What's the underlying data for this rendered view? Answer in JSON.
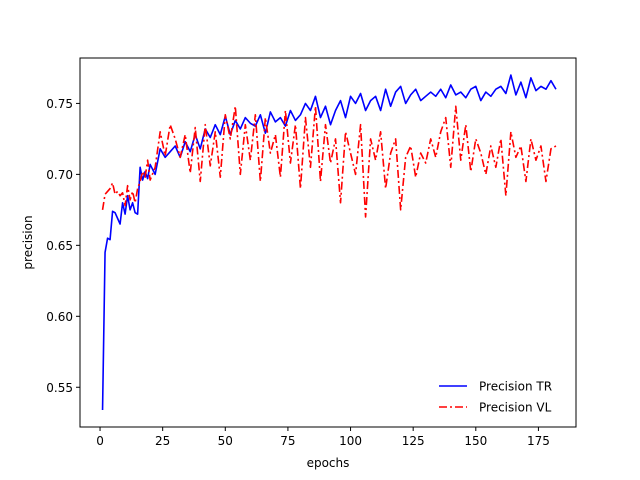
{
  "chart_data": {
    "type": "line",
    "title": "",
    "xlabel": "epochs",
    "ylabel": "precision",
    "xlim": [
      -8,
      190
    ],
    "ylim": [
      0.522,
      0.782
    ],
    "xticks": [
      0,
      25,
      50,
      75,
      100,
      125,
      150,
      175
    ],
    "yticks": [
      0.55,
      0.6,
      0.65,
      0.7,
      0.75
    ],
    "ytick_labels": [
      "0.55",
      "0.60",
      "0.65",
      "0.70",
      "0.75"
    ],
    "grid": false,
    "legend_position": "lower-right",
    "series": [
      {
        "name": "Precision TR",
        "color": "#0000ff",
        "linestyle": "solid",
        "x": [
          1,
          2,
          3,
          4,
          5,
          6,
          7,
          8,
          9,
          10,
          11,
          12,
          13,
          14,
          15,
          16,
          17,
          18,
          19,
          20,
          22,
          24,
          26,
          28,
          30,
          32,
          34,
          36,
          38,
          40,
          42,
          44,
          46,
          48,
          50,
          52,
          54,
          56,
          58,
          60,
          62,
          64,
          66,
          68,
          70,
          72,
          74,
          76,
          78,
          80,
          82,
          84,
          86,
          88,
          90,
          92,
          94,
          96,
          98,
          100,
          102,
          104,
          106,
          108,
          110,
          112,
          114,
          116,
          118,
          120,
          122,
          124,
          126,
          128,
          130,
          132,
          134,
          136,
          138,
          140,
          142,
          144,
          146,
          148,
          150,
          152,
          154,
          156,
          158,
          160,
          162,
          164,
          166,
          168,
          170,
          172,
          174,
          176,
          178,
          180,
          182
        ],
        "y": [
          0.534,
          0.645,
          0.655,
          0.654,
          0.674,
          0.673,
          0.669,
          0.665,
          0.68,
          0.672,
          0.685,
          0.675,
          0.68,
          0.673,
          0.672,
          0.705,
          0.696,
          0.702,
          0.697,
          0.707,
          0.7,
          0.718,
          0.712,
          0.716,
          0.72,
          0.712,
          0.723,
          0.716,
          0.728,
          0.718,
          0.732,
          0.726,
          0.735,
          0.728,
          0.741,
          0.728,
          0.738,
          0.732,
          0.74,
          0.736,
          0.734,
          0.742,
          0.729,
          0.744,
          0.737,
          0.74,
          0.734,
          0.745,
          0.738,
          0.742,
          0.75,
          0.745,
          0.755,
          0.74,
          0.748,
          0.735,
          0.745,
          0.752,
          0.74,
          0.755,
          0.75,
          0.757,
          0.745,
          0.752,
          0.755,
          0.745,
          0.76,
          0.748,
          0.758,
          0.762,
          0.75,
          0.756,
          0.76,
          0.752,
          0.755,
          0.758,
          0.755,
          0.76,
          0.754,
          0.763,
          0.756,
          0.758,
          0.754,
          0.76,
          0.762,
          0.752,
          0.758,
          0.755,
          0.76,
          0.762,
          0.757,
          0.77,
          0.756,
          0.765,
          0.754,
          0.768,
          0.759,
          0.762,
          0.76,
          0.766,
          0.76
        ]
      },
      {
        "name": "Precision VL",
        "color": "#ff0000",
        "linestyle": "dashdot",
        "x": [
          1,
          2,
          3,
          4,
          5,
          6,
          7,
          8,
          9,
          10,
          11,
          12,
          13,
          14,
          15,
          16,
          17,
          18,
          19,
          20,
          22,
          24,
          26,
          28,
          30,
          32,
          34,
          36,
          38,
          40,
          42,
          44,
          46,
          48,
          50,
          52,
          54,
          56,
          58,
          60,
          62,
          64,
          66,
          68,
          70,
          72,
          74,
          76,
          78,
          80,
          82,
          84,
          86,
          88,
          90,
          92,
          94,
          96,
          98,
          100,
          102,
          104,
          106,
          108,
          110,
          112,
          114,
          116,
          118,
          120,
          122,
          124,
          126,
          128,
          130,
          132,
          134,
          136,
          138,
          140,
          142,
          144,
          146,
          148,
          150,
          152,
          154,
          156,
          158,
          160,
          162,
          164,
          166,
          168,
          170,
          172,
          174,
          176,
          178,
          180,
          182
        ],
        "y": [
          0.675,
          0.686,
          0.688,
          0.69,
          0.694,
          0.686,
          0.688,
          0.685,
          0.687,
          0.678,
          0.692,
          0.682,
          0.688,
          0.68,
          0.69,
          0.695,
          0.702,
          0.698,
          0.71,
          0.696,
          0.705,
          0.73,
          0.713,
          0.735,
          0.725,
          0.712,
          0.728,
          0.701,
          0.733,
          0.695,
          0.735,
          0.706,
          0.73,
          0.698,
          0.742,
          0.725,
          0.748,
          0.7,
          0.735,
          0.71,
          0.742,
          0.695,
          0.74,
          0.715,
          0.728,
          0.698,
          0.745,
          0.708,
          0.735,
          0.69,
          0.74,
          0.705,
          0.748,
          0.695,
          0.735,
          0.708,
          0.725,
          0.68,
          0.73,
          0.715,
          0.7,
          0.735,
          0.67,
          0.725,
          0.71,
          0.73,
          0.69,
          0.715,
          0.725,
          0.675,
          0.712,
          0.72,
          0.698,
          0.715,
          0.708,
          0.725,
          0.712,
          0.73,
          0.74,
          0.705,
          0.748,
          0.71,
          0.735,
          0.702,
          0.725,
          0.715,
          0.7,
          0.72,
          0.705,
          0.725,
          0.685,
          0.73,
          0.712,
          0.72,
          0.695,
          0.725,
          0.71,
          0.72,
          0.695,
          0.718,
          0.72
        ]
      }
    ]
  }
}
